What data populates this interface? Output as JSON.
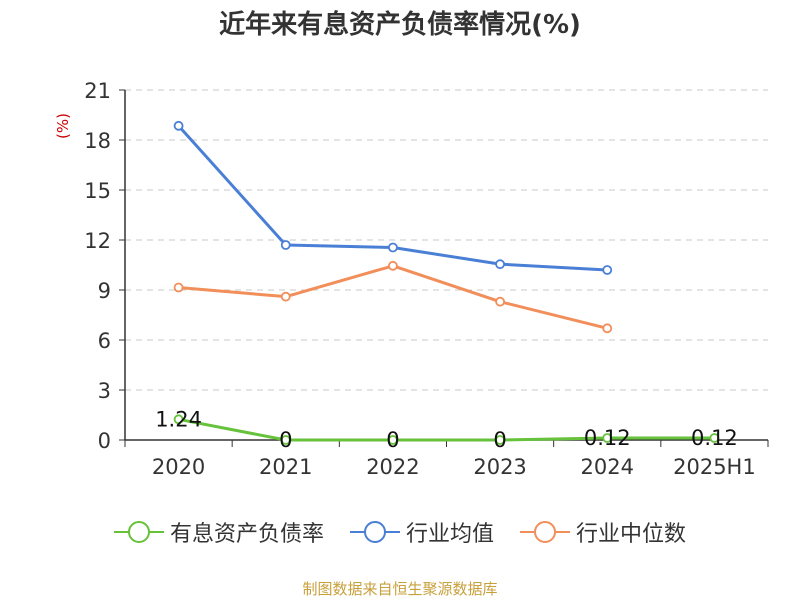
{
  "chart_data": {
    "type": "line",
    "title": "近年来有息资产负债率情况(%)",
    "ylabel": "(%)",
    "categories": [
      "2020",
      "2021",
      "2022",
      "2023",
      "2024",
      "2025H1"
    ],
    "yticks": [
      "0",
      "3",
      "6",
      "9",
      "12",
      "15",
      "18",
      "21"
    ],
    "ylim": [
      0,
      21
    ],
    "grid": true,
    "legend_position": "bottom",
    "series": [
      {
        "name": "有息资产负债率",
        "color": "#66c23a",
        "values": [
          1.24,
          0,
          0,
          0,
          0.12,
          0.12
        ],
        "labels": [
          "1.24",
          "0",
          "0",
          "0",
          "0.12",
          "0.12"
        ]
      },
      {
        "name": "行业均值",
        "color": "#4a7fd6",
        "values": [
          18.85,
          11.7,
          11.55,
          10.55,
          10.2,
          null
        ]
      },
      {
        "name": "行业中位数",
        "color": "#f28e5a",
        "values": [
          9.15,
          8.6,
          10.45,
          8.3,
          6.7,
          null
        ]
      }
    ]
  },
  "source": "制图数据来自恒生聚源数据库"
}
